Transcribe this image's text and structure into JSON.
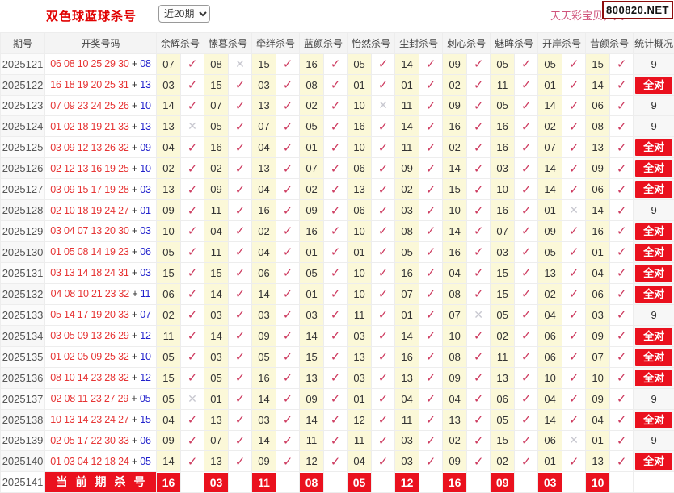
{
  "header": {
    "title": "双色球蓝球杀号",
    "range_select": {
      "value": "近20期"
    },
    "promo_text": "天天彩宝贝，天",
    "site_badge": "800820.NET"
  },
  "glyphs": {
    "check": "✓",
    "cross": "✕"
  },
  "colors": {
    "title_red": "#e10000",
    "badge_border": "#8d0d0d",
    "kill_cell_yellow": "#fbf8d8",
    "check_red": "#cd3a5f",
    "cross_grey": "#c8c8d0",
    "all_correct_red": "#ea111e",
    "red_ball_text": "#e63434",
    "blue_ball_text": "#2222cc"
  },
  "table": {
    "plus_sign": "+",
    "columns": {
      "period": "期号",
      "numbers": "开奖号码",
      "experts": [
        "余辉杀号",
        "愫暮杀号",
        "牵绊杀号",
        "蓝颜杀号",
        "怡然杀号",
        "尘封杀号",
        "刺心杀号",
        "魅眸杀号",
        "开岸杀号",
        "昔颜杀号"
      ],
      "stats": "统计概况"
    },
    "all_correct_label": "全对",
    "rows": [
      {
        "period": "2025121",
        "reds": "06 08 10 25 29 30",
        "blue": "08",
        "kills": [
          {
            "v": "07",
            "ok": true
          },
          {
            "v": "08",
            "ok": false
          },
          {
            "v": "15",
            "ok": true
          },
          {
            "v": "16",
            "ok": true
          },
          {
            "v": "05",
            "ok": true
          },
          {
            "v": "14",
            "ok": true
          },
          {
            "v": "09",
            "ok": true
          },
          {
            "v": "05",
            "ok": true
          },
          {
            "v": "05",
            "ok": true
          },
          {
            "v": "15",
            "ok": true
          }
        ],
        "stat": "9"
      },
      {
        "period": "2025122",
        "reds": "16 18 19 20 25 31",
        "blue": "13",
        "kills": [
          {
            "v": "03",
            "ok": true
          },
          {
            "v": "15",
            "ok": true
          },
          {
            "v": "03",
            "ok": true
          },
          {
            "v": "08",
            "ok": true
          },
          {
            "v": "01",
            "ok": true
          },
          {
            "v": "01",
            "ok": true
          },
          {
            "v": "02",
            "ok": true
          },
          {
            "v": "11",
            "ok": true
          },
          {
            "v": "01",
            "ok": true
          },
          {
            "v": "14",
            "ok": true
          }
        ],
        "stat": "全对"
      },
      {
        "period": "2025123",
        "reds": "07 09 23 24 25 26",
        "blue": "10",
        "kills": [
          {
            "v": "14",
            "ok": true
          },
          {
            "v": "07",
            "ok": true
          },
          {
            "v": "13",
            "ok": true
          },
          {
            "v": "02",
            "ok": true
          },
          {
            "v": "10",
            "ok": false
          },
          {
            "v": "11",
            "ok": true
          },
          {
            "v": "09",
            "ok": true
          },
          {
            "v": "05",
            "ok": true
          },
          {
            "v": "14",
            "ok": true
          },
          {
            "v": "06",
            "ok": true
          }
        ],
        "stat": "9"
      },
      {
        "period": "2025124",
        "reds": "01 02 18 19 21 33",
        "blue": "13",
        "kills": [
          {
            "v": "13",
            "ok": false
          },
          {
            "v": "05",
            "ok": true
          },
          {
            "v": "07",
            "ok": true
          },
          {
            "v": "05",
            "ok": true
          },
          {
            "v": "16",
            "ok": true
          },
          {
            "v": "14",
            "ok": true
          },
          {
            "v": "16",
            "ok": true
          },
          {
            "v": "16",
            "ok": true
          },
          {
            "v": "02",
            "ok": true
          },
          {
            "v": "08",
            "ok": true
          }
        ],
        "stat": "9"
      },
      {
        "period": "2025125",
        "reds": "03 09 12 13 26 32",
        "blue": "09",
        "kills": [
          {
            "v": "04",
            "ok": true
          },
          {
            "v": "16",
            "ok": true
          },
          {
            "v": "04",
            "ok": true
          },
          {
            "v": "01",
            "ok": true
          },
          {
            "v": "10",
            "ok": true
          },
          {
            "v": "11",
            "ok": true
          },
          {
            "v": "02",
            "ok": true
          },
          {
            "v": "16",
            "ok": true
          },
          {
            "v": "07",
            "ok": true
          },
          {
            "v": "13",
            "ok": true
          }
        ],
        "stat": "全对"
      },
      {
        "period": "2025126",
        "reds": "02 12 13 16 19 25",
        "blue": "10",
        "kills": [
          {
            "v": "02",
            "ok": true
          },
          {
            "v": "02",
            "ok": true
          },
          {
            "v": "13",
            "ok": true
          },
          {
            "v": "07",
            "ok": true
          },
          {
            "v": "06",
            "ok": true
          },
          {
            "v": "09",
            "ok": true
          },
          {
            "v": "14",
            "ok": true
          },
          {
            "v": "03",
            "ok": true
          },
          {
            "v": "14",
            "ok": true
          },
          {
            "v": "09",
            "ok": true
          }
        ],
        "stat": "全对"
      },
      {
        "period": "2025127",
        "reds": "03 09 15 17 19 28",
        "blue": "03",
        "kills": [
          {
            "v": "13",
            "ok": true
          },
          {
            "v": "09",
            "ok": true
          },
          {
            "v": "04",
            "ok": true
          },
          {
            "v": "02",
            "ok": true
          },
          {
            "v": "13",
            "ok": true
          },
          {
            "v": "02",
            "ok": true
          },
          {
            "v": "15",
            "ok": true
          },
          {
            "v": "10",
            "ok": true
          },
          {
            "v": "14",
            "ok": true
          },
          {
            "v": "06",
            "ok": true
          }
        ],
        "stat": "全对"
      },
      {
        "period": "2025128",
        "reds": "02 10 18 19 24 27",
        "blue": "01",
        "kills": [
          {
            "v": "09",
            "ok": true
          },
          {
            "v": "11",
            "ok": true
          },
          {
            "v": "16",
            "ok": true
          },
          {
            "v": "09",
            "ok": true
          },
          {
            "v": "06",
            "ok": true
          },
          {
            "v": "03",
            "ok": true
          },
          {
            "v": "10",
            "ok": true
          },
          {
            "v": "16",
            "ok": true
          },
          {
            "v": "01",
            "ok": false
          },
          {
            "v": "14",
            "ok": true
          }
        ],
        "stat": "9"
      },
      {
        "period": "2025129",
        "reds": "03 04 07 13 20 30",
        "blue": "03",
        "kills": [
          {
            "v": "10",
            "ok": true
          },
          {
            "v": "04",
            "ok": true
          },
          {
            "v": "02",
            "ok": true
          },
          {
            "v": "16",
            "ok": true
          },
          {
            "v": "10",
            "ok": true
          },
          {
            "v": "08",
            "ok": true
          },
          {
            "v": "14",
            "ok": true
          },
          {
            "v": "07",
            "ok": true
          },
          {
            "v": "09",
            "ok": true
          },
          {
            "v": "16",
            "ok": true
          }
        ],
        "stat": "全对"
      },
      {
        "period": "2025130",
        "reds": "01 05 08 14 19 23",
        "blue": "06",
        "kills": [
          {
            "v": "05",
            "ok": true
          },
          {
            "v": "11",
            "ok": true
          },
          {
            "v": "04",
            "ok": true
          },
          {
            "v": "01",
            "ok": true
          },
          {
            "v": "01",
            "ok": true
          },
          {
            "v": "05",
            "ok": true
          },
          {
            "v": "16",
            "ok": true
          },
          {
            "v": "03",
            "ok": true
          },
          {
            "v": "05",
            "ok": true
          },
          {
            "v": "01",
            "ok": true
          }
        ],
        "stat": "全对"
      },
      {
        "period": "2025131",
        "reds": "03 13 14 18 24 31",
        "blue": "03",
        "kills": [
          {
            "v": "15",
            "ok": true
          },
          {
            "v": "15",
            "ok": true
          },
          {
            "v": "06",
            "ok": true
          },
          {
            "v": "05",
            "ok": true
          },
          {
            "v": "10",
            "ok": true
          },
          {
            "v": "16",
            "ok": true
          },
          {
            "v": "04",
            "ok": true
          },
          {
            "v": "15",
            "ok": true
          },
          {
            "v": "13",
            "ok": true
          },
          {
            "v": "04",
            "ok": true
          }
        ],
        "stat": "全对"
      },
      {
        "period": "2025132",
        "reds": "04 08 10 21 23 32",
        "blue": "11",
        "kills": [
          {
            "v": "06",
            "ok": true
          },
          {
            "v": "14",
            "ok": true
          },
          {
            "v": "14",
            "ok": true
          },
          {
            "v": "01",
            "ok": true
          },
          {
            "v": "10",
            "ok": true
          },
          {
            "v": "07",
            "ok": true
          },
          {
            "v": "08",
            "ok": true
          },
          {
            "v": "15",
            "ok": true
          },
          {
            "v": "02",
            "ok": true
          },
          {
            "v": "06",
            "ok": true
          }
        ],
        "stat": "全对"
      },
      {
        "period": "2025133",
        "reds": "05 14 17 19 20 33",
        "blue": "07",
        "kills": [
          {
            "v": "02",
            "ok": true
          },
          {
            "v": "03",
            "ok": true
          },
          {
            "v": "03",
            "ok": true
          },
          {
            "v": "03",
            "ok": true
          },
          {
            "v": "11",
            "ok": true
          },
          {
            "v": "01",
            "ok": true
          },
          {
            "v": "07",
            "ok": false
          },
          {
            "v": "05",
            "ok": true
          },
          {
            "v": "04",
            "ok": true
          },
          {
            "v": "03",
            "ok": true
          }
        ],
        "stat": "9"
      },
      {
        "period": "2025134",
        "reds": "03 05 09 13 26 29",
        "blue": "12",
        "kills": [
          {
            "v": "11",
            "ok": true
          },
          {
            "v": "14",
            "ok": true
          },
          {
            "v": "09",
            "ok": true
          },
          {
            "v": "14",
            "ok": true
          },
          {
            "v": "03",
            "ok": true
          },
          {
            "v": "14",
            "ok": true
          },
          {
            "v": "10",
            "ok": true
          },
          {
            "v": "02",
            "ok": true
          },
          {
            "v": "06",
            "ok": true
          },
          {
            "v": "09",
            "ok": true
          }
        ],
        "stat": "全对"
      },
      {
        "period": "2025135",
        "reds": "01 02 05 09 25 32",
        "blue": "10",
        "kills": [
          {
            "v": "05",
            "ok": true
          },
          {
            "v": "03",
            "ok": true
          },
          {
            "v": "05",
            "ok": true
          },
          {
            "v": "15",
            "ok": true
          },
          {
            "v": "13",
            "ok": true
          },
          {
            "v": "16",
            "ok": true
          },
          {
            "v": "08",
            "ok": true
          },
          {
            "v": "11",
            "ok": true
          },
          {
            "v": "06",
            "ok": true
          },
          {
            "v": "07",
            "ok": true
          }
        ],
        "stat": "全对"
      },
      {
        "period": "2025136",
        "reds": "08 10 14 23 28 32",
        "blue": "12",
        "kills": [
          {
            "v": "15",
            "ok": true
          },
          {
            "v": "05",
            "ok": true
          },
          {
            "v": "16",
            "ok": true
          },
          {
            "v": "13",
            "ok": true
          },
          {
            "v": "03",
            "ok": true
          },
          {
            "v": "13",
            "ok": true
          },
          {
            "v": "09",
            "ok": true
          },
          {
            "v": "13",
            "ok": true
          },
          {
            "v": "10",
            "ok": true
          },
          {
            "v": "10",
            "ok": true
          }
        ],
        "stat": "全对"
      },
      {
        "period": "2025137",
        "reds": "02 08 11 23 27 29",
        "blue": "05",
        "kills": [
          {
            "v": "05",
            "ok": false
          },
          {
            "v": "01",
            "ok": true
          },
          {
            "v": "14",
            "ok": true
          },
          {
            "v": "09",
            "ok": true
          },
          {
            "v": "01",
            "ok": true
          },
          {
            "v": "04",
            "ok": true
          },
          {
            "v": "04",
            "ok": true
          },
          {
            "v": "06",
            "ok": true
          },
          {
            "v": "04",
            "ok": true
          },
          {
            "v": "09",
            "ok": true
          }
        ],
        "stat": "9"
      },
      {
        "period": "2025138",
        "reds": "10 13 14 23 24 27",
        "blue": "15",
        "kills": [
          {
            "v": "04",
            "ok": true
          },
          {
            "v": "13",
            "ok": true
          },
          {
            "v": "03",
            "ok": true
          },
          {
            "v": "14",
            "ok": true
          },
          {
            "v": "12",
            "ok": true
          },
          {
            "v": "11",
            "ok": true
          },
          {
            "v": "13",
            "ok": true
          },
          {
            "v": "05",
            "ok": true
          },
          {
            "v": "14",
            "ok": true
          },
          {
            "v": "04",
            "ok": true
          }
        ],
        "stat": "全对"
      },
      {
        "period": "2025139",
        "reds": "02 05 17 22 30 33",
        "blue": "06",
        "kills": [
          {
            "v": "09",
            "ok": true
          },
          {
            "v": "07",
            "ok": true
          },
          {
            "v": "14",
            "ok": true
          },
          {
            "v": "11",
            "ok": true
          },
          {
            "v": "11",
            "ok": true
          },
          {
            "v": "03",
            "ok": true
          },
          {
            "v": "02",
            "ok": true
          },
          {
            "v": "15",
            "ok": true
          },
          {
            "v": "06",
            "ok": false
          },
          {
            "v": "01",
            "ok": true
          }
        ],
        "stat": "9"
      },
      {
        "period": "2025140",
        "reds": "01 03 04 12 18 24",
        "blue": "05",
        "kills": [
          {
            "v": "14",
            "ok": true
          },
          {
            "v": "13",
            "ok": true
          },
          {
            "v": "09",
            "ok": true
          },
          {
            "v": "12",
            "ok": true
          },
          {
            "v": "04",
            "ok": true
          },
          {
            "v": "03",
            "ok": true
          },
          {
            "v": "09",
            "ok": true
          },
          {
            "v": "02",
            "ok": true
          },
          {
            "v": "01",
            "ok": true
          },
          {
            "v": "13",
            "ok": true
          }
        ],
        "stat": "全对"
      }
    ],
    "current": {
      "period": "2025141",
      "label": "当前期杀号",
      "kills": [
        "16",
        "03",
        "11",
        "08",
        "05",
        "12",
        "16",
        "09",
        "03",
        "10"
      ]
    }
  }
}
